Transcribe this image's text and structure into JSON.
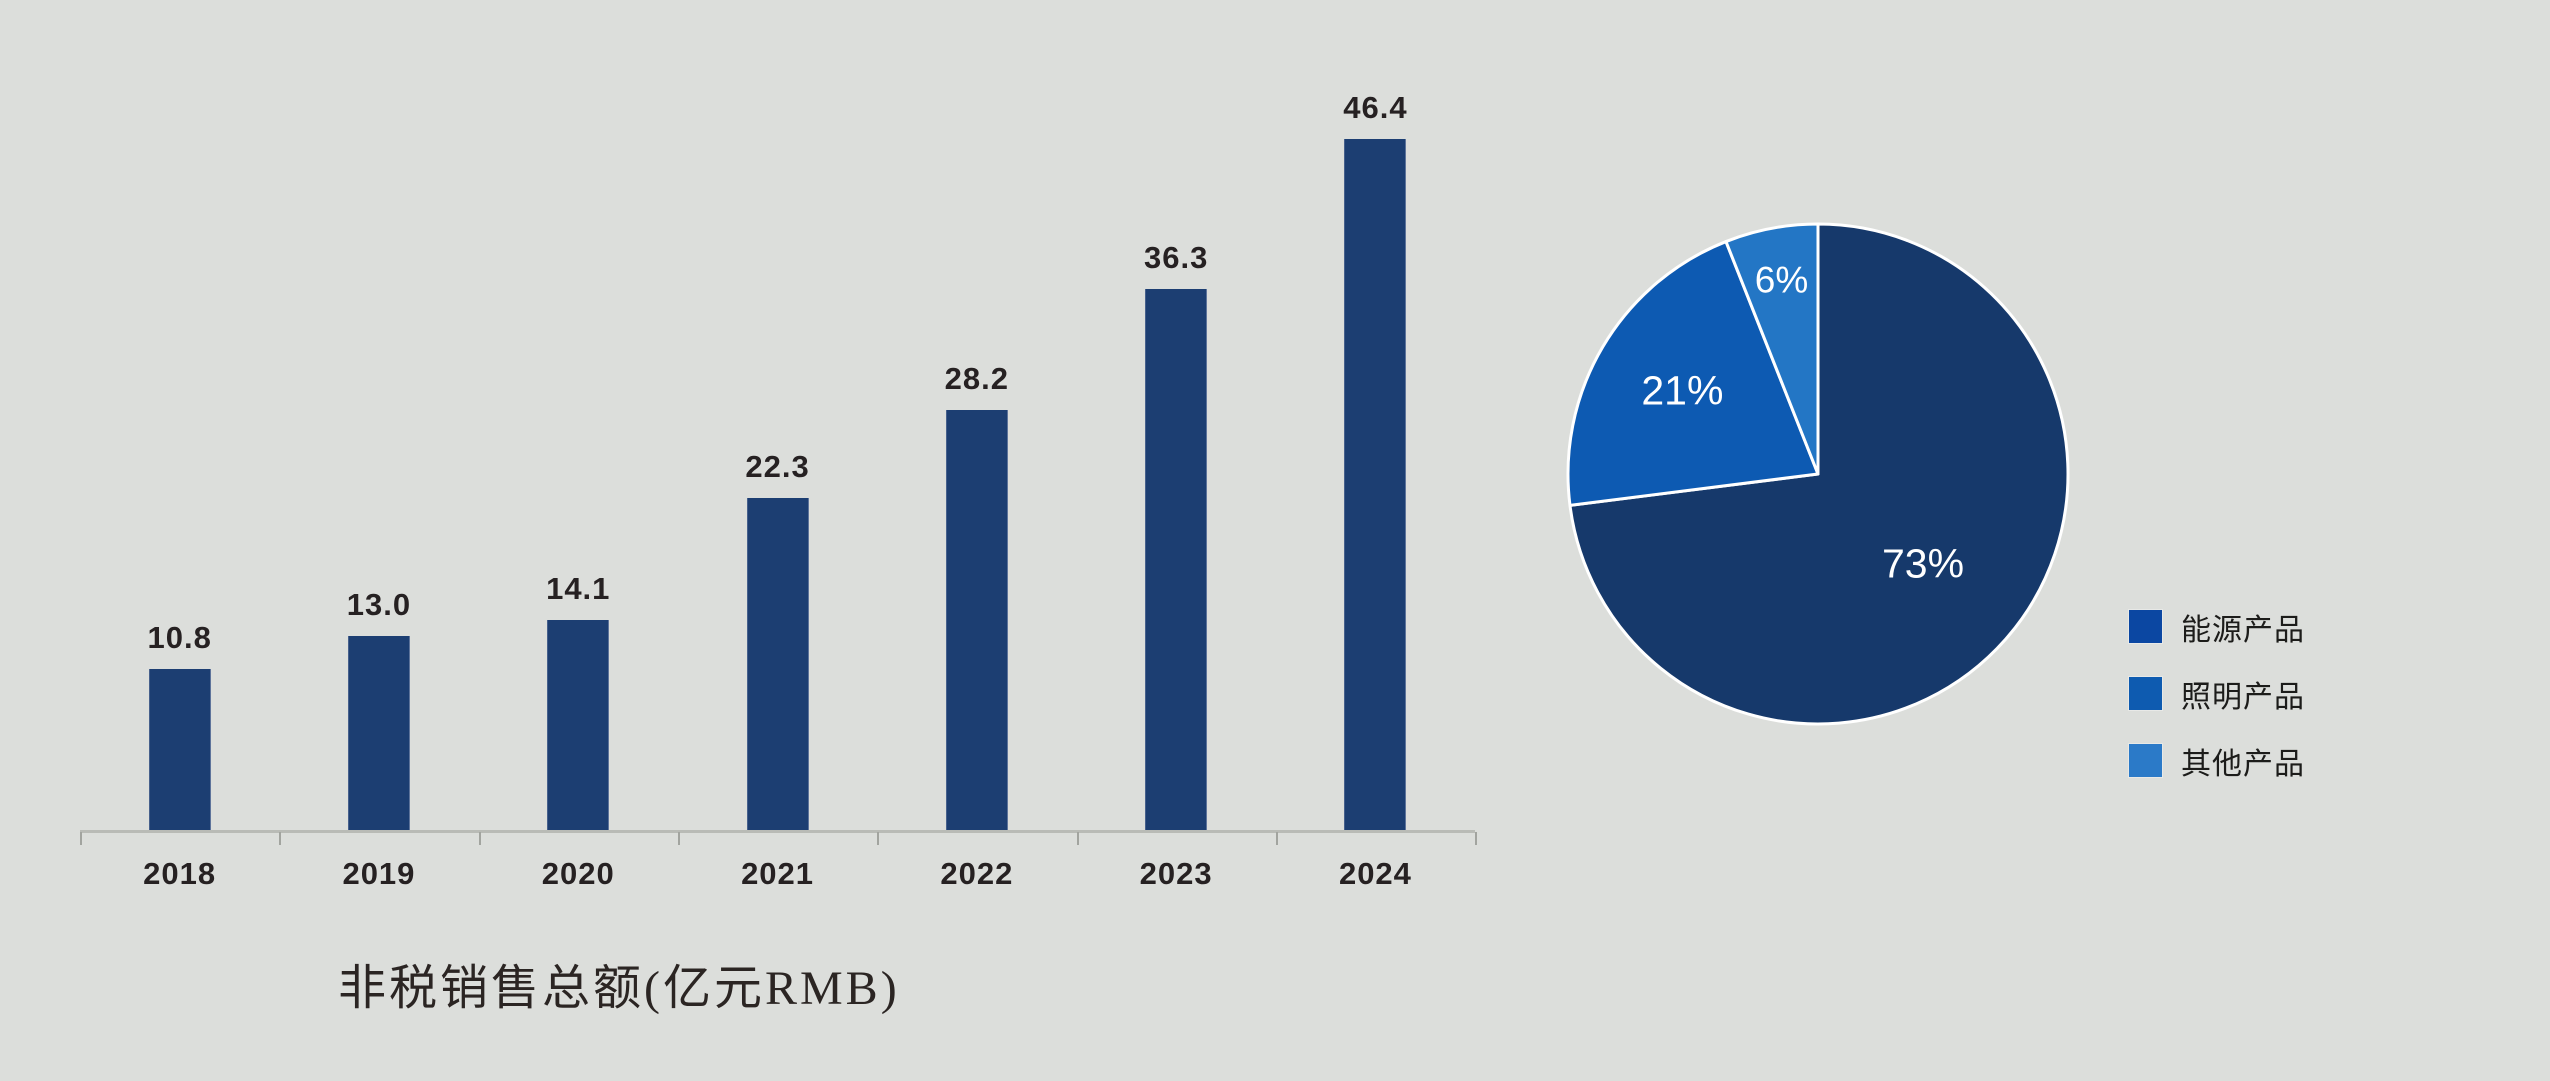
{
  "background_color": "#dcdedb",
  "chart_data": [
    {
      "type": "bar",
      "title": "非税销售总额(亿元RMB)",
      "categories": [
        "2018",
        "2019",
        "2020",
        "2021",
        "2022",
        "2023",
        "2024"
      ],
      "values": [
        10.8,
        13.0,
        14.1,
        22.3,
        28.2,
        36.3,
        46.4
      ],
      "value_labels": [
        "10.8",
        "13.0",
        "14.1",
        "22.3",
        "28.2",
        "36.3",
        "46.4"
      ],
      "xlabel": "",
      "ylabel": "",
      "ylim": [
        0,
        50
      ],
      "grid": false,
      "legend_position": "none",
      "bar_color": "#1c3e72",
      "label_color": "#262122",
      "axis_color": "#a2a49f"
    },
    {
      "type": "pie",
      "categories": [
        "能源产品",
        "照明产品",
        "其他产品"
      ],
      "values": [
        73,
        21,
        6
      ],
      "slice_labels": [
        "73%",
        "21%",
        "6%"
      ],
      "colors": [
        "#16396b",
        "#0d5ab2",
        "#2376c5"
      ],
      "start_angle_deg": 0,
      "direction": "clockwise",
      "slice_label_color": "#ffffff",
      "slice_border_color": "#ffffff",
      "legend_position": "right"
    }
  ],
  "legend": {
    "items": [
      {
        "label": "能源产品",
        "color": "#0b47a2"
      },
      {
        "label": "照明产品",
        "color": "#0e5bb0"
      },
      {
        "label": "其他产品",
        "color": "#2b7ac8"
      }
    ]
  }
}
